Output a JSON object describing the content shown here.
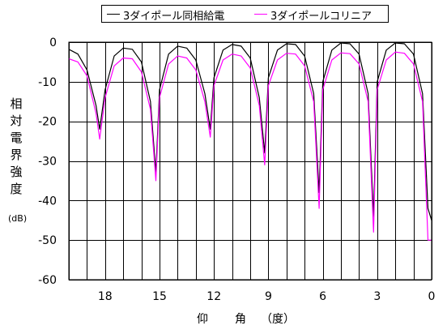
{
  "chart_data": {
    "type": "line",
    "title": "",
    "xlabel": [
      "仰",
      "角",
      "（度）"
    ],
    "ylabel": [
      "相",
      "対",
      "電",
      "界",
      "強",
      "度"
    ],
    "ylabel_unit": "(dB)",
    "xlim": [
      20,
      0
    ],
    "ylim": [
      -60,
      0
    ],
    "xticks": [
      18,
      15,
      12,
      9,
      6,
      3,
      0
    ],
    "yticks": [
      0,
      -10,
      -20,
      -30,
      -40,
      -50,
      -60
    ],
    "grid": true,
    "legend_position": "top",
    "x": [
      20,
      19.5,
      19,
      18.5,
      18.3,
      18.0,
      17.5,
      17.0,
      16.5,
      16.0,
      15.5,
      15.2,
      15.0,
      14.5,
      14.0,
      13.5,
      13.0,
      12.5,
      12.2,
      12.0,
      11.5,
      11.0,
      10.5,
      10.0,
      9.5,
      9.2,
      9.0,
      8.5,
      8.0,
      7.5,
      7.0,
      6.5,
      6.2,
      6.0,
      5.5,
      5.0,
      4.5,
      4.0,
      3.5,
      3.2,
      3.0,
      2.5,
      2.0,
      1.5,
      1.0,
      0.5,
      0.2,
      0.0
    ],
    "series": [
      {
        "name": "3ダイポール同相給電",
        "color": "#000000",
        "values": [
          -1.8,
          -3.0,
          -7.0,
          -16.0,
          -22.0,
          -12.0,
          -3.5,
          -1.5,
          -1.8,
          -5.0,
          -15.0,
          -33.0,
          -12.0,
          -3.0,
          -1.0,
          -1.5,
          -4.5,
          -13.0,
          -22.0,
          -9.0,
          -2.0,
          -0.6,
          -1.0,
          -4.0,
          -14.0,
          -28.0,
          -9.0,
          -2.0,
          -0.4,
          -0.6,
          -3.5,
          -13.0,
          -38.0,
          -10.0,
          -2.0,
          -0.2,
          -0.4,
          -3.0,
          -13.0,
          -44.0,
          -10.0,
          -2.0,
          -0.2,
          -0.4,
          -3.0,
          -13.0,
          -42.0,
          -45.0
        ]
      },
      {
        "name": "3ダイポールコリニア",
        "color": "#ff00ff",
        "values": [
          -4.2,
          -5.0,
          -8.5,
          -18.0,
          -24.5,
          -14.0,
          -6.0,
          -4.0,
          -4.2,
          -7.5,
          -17.0,
          -35.0,
          -14.0,
          -5.5,
          -3.5,
          -4.0,
          -7.0,
          -15.0,
          -24.0,
          -11.0,
          -4.5,
          -3.0,
          -3.5,
          -6.5,
          -16.0,
          -31.0,
          -11.0,
          -4.5,
          -2.8,
          -3.0,
          -6.0,
          -15.0,
          -42.0,
          -12.0,
          -4.5,
          -2.7,
          -2.9,
          -5.5,
          -15.0,
          -48.0,
          -12.0,
          -4.5,
          -2.5,
          -2.8,
          -5.5,
          -15.0,
          -50.0,
          -50.0
        ]
      }
    ]
  }
}
